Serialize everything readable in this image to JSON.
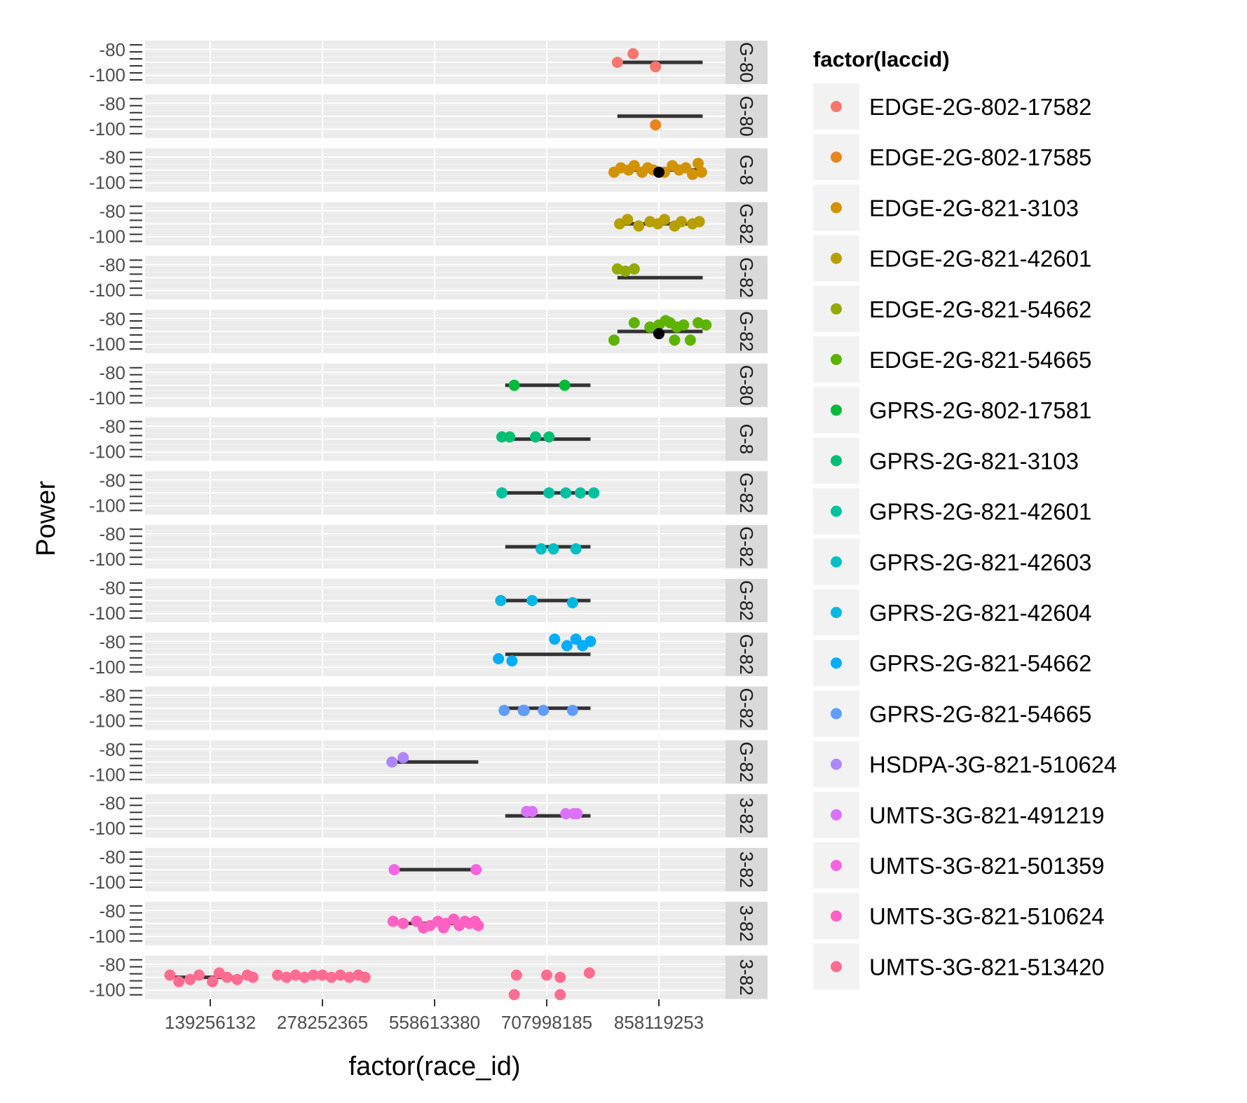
{
  "chart_data": {
    "type": "scatter",
    "title": "",
    "xlabel": "factor(race_id)",
    "ylabel": "Power",
    "legend_title": "factor(laccid)",
    "legend_position": "right",
    "grid": true,
    "facet": "rows by laccid, free panels",
    "x_tick_labels": [
      "139256132",
      "278252365",
      "558613380",
      "707998185",
      "858119253"
    ],
    "y_tick_labels": [
      "-80",
      "-100"
    ],
    "series": [
      {
        "name": "EDGE-2G-802-17582",
        "strip": "G-80",
        "color": "#F8766D",
        "x_points": [
          4.63,
          4.77,
          4.97
        ],
        "y_points": [
          0.5,
          0.3,
          0.6
        ],
        "box": [
          4.63,
          5.39
        ],
        "outliers": []
      },
      {
        "name": "EDGE-2G-802-17585",
        "strip": "G-80",
        "color": "#E7861B",
        "x_points": [
          4.97
        ],
        "y_points": [
          0.7
        ],
        "box": [
          4.63,
          5.39
        ],
        "outliers": []
      },
      {
        "name": "EDGE-2G-821-3103",
        "strip": "G-8",
        "color": "#D39200",
        "x_points": [
          4.6,
          4.66,
          4.73,
          4.78,
          4.85,
          4.9,
          4.95,
          5.05,
          5.12,
          5.18,
          5.24,
          5.3,
          5.35,
          5.38
        ],
        "y_points": [
          0.55,
          0.45,
          0.5,
          0.4,
          0.55,
          0.45,
          0.5,
          0.55,
          0.4,
          0.5,
          0.45,
          0.6,
          0.35,
          0.55
        ],
        "box": [
          4.6,
          5.39
        ],
        "outliers": [
          5.0
        ]
      },
      {
        "name": "EDGE-2G-821-42601",
        "strip": "G-82",
        "color": "#B79F00",
        "x_points": [
          4.65,
          4.72,
          4.82,
          4.92,
          4.99,
          5.05,
          5.14,
          5.2,
          5.3,
          5.36
        ],
        "y_points": [
          0.5,
          0.4,
          0.55,
          0.45,
          0.5,
          0.4,
          0.55,
          0.45,
          0.5,
          0.45
        ],
        "box": [
          4.63,
          5.39
        ],
        "outliers": []
      },
      {
        "name": "EDGE-2G-821-54662",
        "strip": "G-82",
        "color": "#93AA00",
        "x_points": [
          4.63,
          4.7,
          4.78
        ],
        "y_points": [
          0.3,
          0.35,
          0.3
        ],
        "box": [
          4.63,
          5.39
        ],
        "outliers": []
      },
      {
        "name": "EDGE-2G-821-54665",
        "strip": "G-82",
        "color": "#5EB300",
        "x_points": [
          4.6,
          4.78,
          4.92,
          5.06,
          5.1,
          5.16,
          5.22,
          5.28,
          5.35,
          5.42,
          5.0,
          5.14
        ],
        "y_points": [
          0.7,
          0.3,
          0.4,
          0.25,
          0.3,
          0.4,
          0.35,
          0.7,
          0.3,
          0.35,
          0.35,
          0.7
        ],
        "box": [
          4.63,
          5.39
        ],
        "outliers": [
          5.0
        ]
      },
      {
        "name": "GPRS-2G-802-17581",
        "strip": "G-80",
        "color": "#00BA38",
        "x_points": [
          3.71,
          4.16
        ],
        "y_points": [
          0.5,
          0.5
        ],
        "box": [
          3.63,
          4.39
        ],
        "outliers": []
      },
      {
        "name": "GPRS-2G-821-3103",
        "strip": "G-8",
        "color": "#00BF74",
        "x_points": [
          3.6,
          3.67,
          3.9,
          4.02
        ],
        "y_points": [
          0.45,
          0.45,
          0.45,
          0.45
        ],
        "box": [
          3.63,
          4.39
        ],
        "outliers": []
      },
      {
        "name": "GPRS-2G-821-42601",
        "strip": "G-82",
        "color": "#00C19F",
        "x_points": [
          3.6,
          4.02,
          4.17,
          4.3,
          4.42
        ],
        "y_points": [
          0.5,
          0.5,
          0.5,
          0.5,
          0.5
        ],
        "box": [
          3.63,
          4.39
        ],
        "outliers": []
      },
      {
        "name": "GPRS-2G-821-42603",
        "strip": "G-82",
        "color": "#00BFC4",
        "x_points": [
          3.95,
          4.06,
          4.26
        ],
        "y_points": [
          0.55,
          0.55,
          0.55
        ],
        "box": [
          3.63,
          4.39
        ],
        "outliers": []
      },
      {
        "name": "GPRS-2G-821-42604",
        "strip": "G-82",
        "color": "#00B9E3",
        "x_points": [
          3.59,
          3.87,
          4.23
        ],
        "y_points": [
          0.5,
          0.5,
          0.55
        ],
        "box": [
          3.63,
          4.39
        ],
        "outliers": []
      },
      {
        "name": "GPRS-2G-821-54662",
        "strip": "G-82",
        "color": "#00ADFA",
        "x_points": [
          3.57,
          3.69,
          4.07,
          4.18,
          4.26,
          4.32,
          4.39
        ],
        "y_points": [
          0.6,
          0.65,
          0.15,
          0.3,
          0.15,
          0.3,
          0.2
        ],
        "box": [
          3.63,
          4.39
        ],
        "outliers": []
      },
      {
        "name": "GPRS-2G-821-54665",
        "strip": "G-82",
        "color": "#619CFF",
        "x_points": [
          3.62,
          3.79,
          3.8,
          3.97,
          4.23
        ],
        "y_points": [
          0.55,
          0.55,
          0.55,
          0.55,
          0.55
        ],
        "box": [
          3.63,
          4.39
        ],
        "outliers": []
      },
      {
        "name": "HSDPA-3G-821-510624",
        "strip": "G-82",
        "color": "#AE87FF",
        "x_points": [
          2.62,
          2.72
        ],
        "y_points": [
          0.5,
          0.4
        ],
        "box": [
          2.63,
          3.39
        ],
        "outliers": []
      },
      {
        "name": "UMTS-3G-821-491219",
        "strip": "3-82",
        "color": "#DB72FB",
        "x_points": [
          3.82,
          3.87,
          4.17,
          4.24,
          4.27
        ],
        "y_points": [
          0.4,
          0.4,
          0.45,
          0.45,
          0.45
        ],
        "box": [
          3.63,
          4.39
        ],
        "outliers": []
      },
      {
        "name": "UMTS-3G-821-501359",
        "strip": "3-82",
        "color": "#F564E3",
        "x_points": [
          2.64,
          3.37
        ],
        "y_points": [
          0.5,
          0.5
        ],
        "box": [
          2.63,
          3.39
        ],
        "outliers": []
      },
      {
        "name": "UMTS-3G-821-510624",
        "strip": "3-82",
        "color": "#FF61C3",
        "x_points": [
          2.63,
          2.72,
          2.84,
          2.96,
          3.03,
          3.1,
          3.17,
          3.22,
          3.27,
          3.31,
          3.36,
          3.39,
          2.9,
          3.08
        ],
        "y_points": [
          0.45,
          0.5,
          0.45,
          0.55,
          0.45,
          0.5,
          0.4,
          0.55,
          0.45,
          0.5,
          0.45,
          0.55,
          0.6,
          0.6
        ],
        "box": [
          2.63,
          3.39
        ],
        "outliers": []
      },
      {
        "name": "UMTS-3G-821-513420",
        "strip": "3-82",
        "color": "#FF6C91",
        "x_points": [
          0.64,
          0.72,
          0.82,
          0.9,
          1.02,
          1.08,
          1.15,
          1.24,
          1.33,
          1.38,
          1.6,
          1.68,
          1.76,
          1.84,
          1.92,
          2.0,
          2.08,
          2.16,
          2.24,
          2.32,
          2.38,
          3.73,
          4.0,
          4.12,
          4.38,
          3.71,
          4.12
        ],
        "y_points": [
          0.45,
          0.6,
          0.55,
          0.45,
          0.6,
          0.4,
          0.5,
          0.55,
          0.45,
          0.5,
          0.45,
          0.5,
          0.45,
          0.5,
          0.45,
          0.45,
          0.5,
          0.45,
          0.5,
          0.45,
          0.5,
          0.45,
          0.45,
          0.5,
          0.4,
          0.9,
          0.9
        ],
        "box": [
          0.63,
          1.39
        ],
        "outliers": []
      }
    ]
  }
}
